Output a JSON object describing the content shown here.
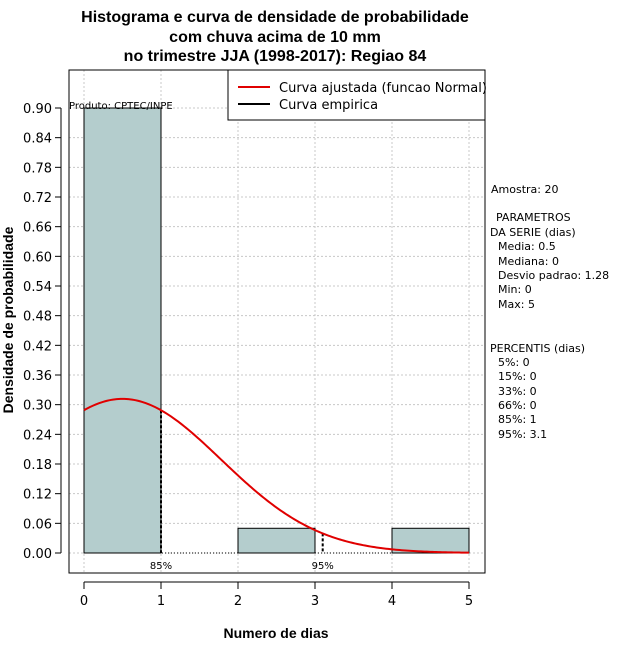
{
  "chart_data": {
    "type": "bar",
    "title_lines": [
      "Histograma e curva de densidade de probabilidade",
      "com chuva acima de 10 mm",
      "no trimestre JJA (1998-2017): Regiao 84"
    ],
    "xlabel": "Numero de dias",
    "ylabel": "Densidade de probabilidade",
    "xlim": [
      -0.2,
      5.2
    ],
    "ylim": [
      -0.04,
      0.97
    ],
    "x_ticks": [
      0,
      1,
      2,
      3,
      4,
      5
    ],
    "y_ticks": [
      0.0,
      0.06,
      0.12,
      0.18,
      0.24,
      0.3,
      0.36,
      0.42,
      0.48,
      0.54,
      0.6,
      0.66,
      0.72,
      0.78,
      0.84,
      0.9
    ],
    "y_tick_labels": [
      "0.00",
      "0.06",
      "0.12",
      "0.18",
      "0.24",
      "0.30",
      "0.36",
      "0.42",
      "0.48",
      "0.54",
      "0.60",
      "0.66",
      "0.72",
      "0.78",
      "0.84",
      "0.90"
    ],
    "bins": [
      {
        "from": 0,
        "to": 1,
        "density": 0.9
      },
      {
        "from": 1,
        "to": 2,
        "density": 0.0
      },
      {
        "from": 2,
        "to": 3,
        "density": 0.05
      },
      {
        "from": 3,
        "to": 4,
        "density": 0.0
      },
      {
        "from": 4,
        "to": 5,
        "density": 0.05
      }
    ],
    "fitted_curve": {
      "name": "Curva ajustada (funcao Normal)",
      "color": "#e00000",
      "mean": 0.5,
      "sd": 1.28,
      "x_range": [
        0,
        5
      ]
    },
    "empirical_curve": {
      "name": "Curva empirica",
      "color": "#000000"
    },
    "percentile_markers": [
      {
        "label": "85%",
        "x": 1.0
      },
      {
        "label": "95%",
        "x": 3.1
      }
    ],
    "bar_color": "#b4cdcd",
    "grid": true,
    "legend_position": "top-right",
    "source_note": "Produto: CPTEC/INPE"
  },
  "side_panel": {
    "sample": "Amostra: 20",
    "params_title_1": "PARAMETROS",
    "params_title_2": "DA SERIE (dias)",
    "params": [
      "Media: 0.5",
      "Mediana: 0",
      "Desvio padrao: 1.28",
      "Min: 0",
      "Max: 5"
    ],
    "percentiles_title": "PERCENTIS (dias)",
    "percentiles": [
      "5%: 0",
      "15%: 0",
      "33%: 0",
      "66%: 0",
      "85%: 1",
      "95%: 3.1"
    ]
  }
}
